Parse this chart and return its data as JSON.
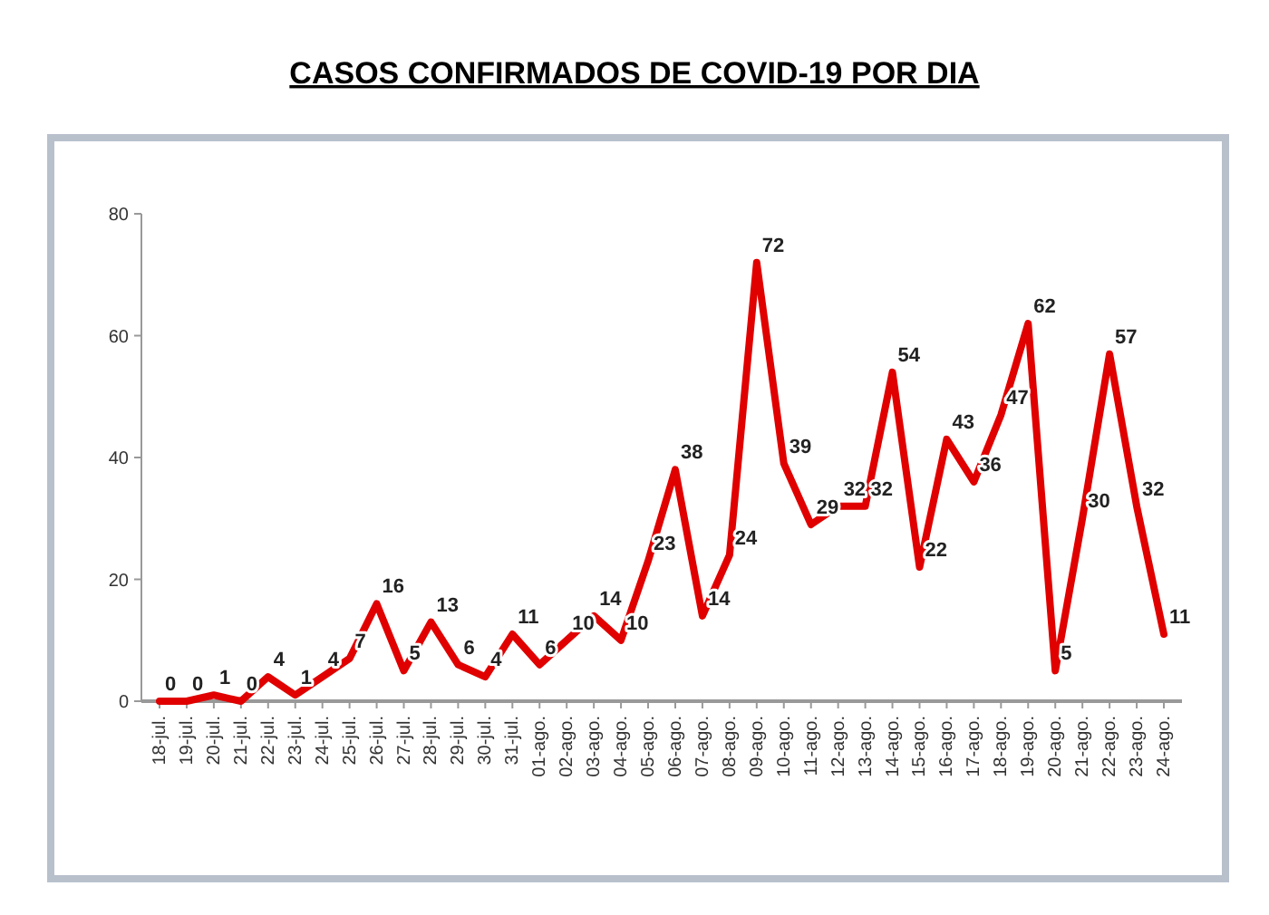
{
  "chart_data": {
    "type": "line",
    "title": "CASOS CONFIRMADOS DE COVID-19 POR DIA",
    "categories": [
      "18-jul.",
      "19-jul.",
      "20-jul.",
      "21-jul.",
      "22-jul.",
      "23-jul.",
      "24-jul.",
      "25-jul.",
      "26-jul.",
      "27-jul.",
      "28-jul.",
      "29-jul.",
      "30-jul.",
      "31-jul.",
      "01-ago.",
      "02-ago.",
      "03-ago.",
      "04-ago.",
      "05-ago.",
      "06-ago.",
      "07-ago.",
      "08-ago.",
      "09-ago.",
      "10-ago.",
      "11-ago.",
      "12-ago.",
      "13-ago.",
      "14-ago.",
      "15-ago.",
      "16-ago.",
      "17-ago.",
      "18-ago.",
      "19-ago.",
      "20-ago.",
      "21-ago.",
      "22-ago.",
      "23-ago.",
      "24-ago."
    ],
    "values": [
      0,
      0,
      1,
      0,
      4,
      1,
      4,
      7,
      16,
      5,
      13,
      6,
      4,
      11,
      6,
      10,
      14,
      10,
      23,
      38,
      14,
      24,
      72,
      39,
      29,
      32,
      32,
      54,
      22,
      43,
      36,
      47,
      62,
      5,
      30,
      57,
      32,
      11
    ],
    "color": "#e00000",
    "ylim": [
      0,
      80
    ],
    "yticks": [
      0,
      20,
      40,
      60,
      80
    ],
    "data_labels": true
  }
}
